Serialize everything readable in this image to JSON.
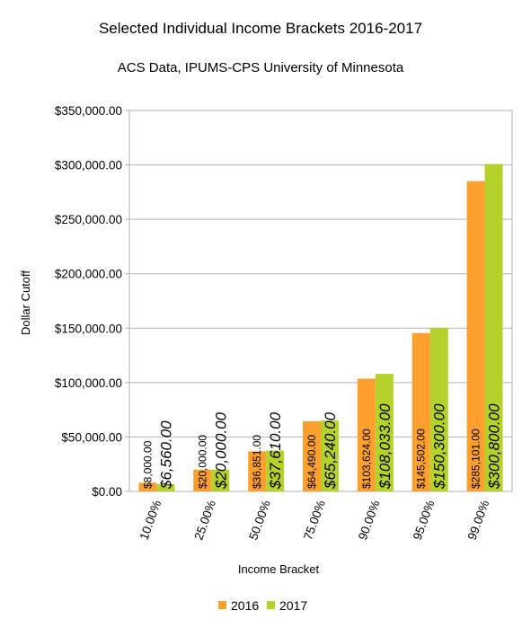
{
  "chart_data": {
    "type": "bar",
    "title": "Selected Individual Income Brackets 2016-2017",
    "subtitle": "ACS Data, IPUMS-CPS University of Minnesota",
    "xlabel": "Income Bracket",
    "ylabel": "Dollar Cutoff",
    "ylim": [
      0,
      350000
    ],
    "yticks": [
      "$0.00",
      "$50,000.00",
      "$100,000.00",
      "$150,000.00",
      "$200,000.00",
      "$250,000.00",
      "$300,000.00",
      "$350,000.00"
    ],
    "grid": true,
    "legend_position": "bottom",
    "categories": [
      "10.00%",
      "25.00%",
      "50.00%",
      "75.00%",
      "90.00%",
      "95.00%",
      "99.00%"
    ],
    "series": [
      {
        "name": "2016",
        "color": "#ff9f2e",
        "values": [
          8000,
          20000,
          36851,
          64490,
          103624,
          145502,
          285101
        ],
        "labels": [
          "$8,000.00",
          "$20,000.00",
          "$36,851.00",
          "$64,490.00",
          "$103,624.00",
          "$145,502.00",
          "$285,101.00"
        ]
      },
      {
        "name": "2017",
        "color": "#b5d22c",
        "values": [
          6560,
          20000,
          37610,
          65240,
          108033,
          150300,
          300800
        ],
        "labels": [
          "$6,560.00",
          "$20,000.00",
          "$37,610.00",
          "$65,240.00",
          "$108,033.00",
          "$150,300.00",
          "$300,800.00"
        ]
      }
    ]
  }
}
